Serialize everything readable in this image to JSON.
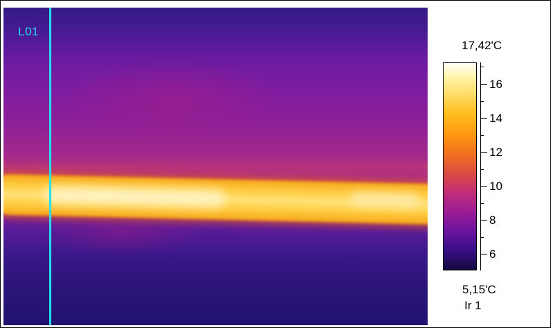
{
  "thermal_view": {
    "line_tool": {
      "label": "L01",
      "color": "#22e0f0"
    },
    "scale": {
      "max_label": "17,42'C",
      "min_label": "5,15'C",
      "max_value": 17.42,
      "min_value": 5.15,
      "ticks": [
        "16",
        "14",
        "12",
        "10",
        "8",
        "6"
      ],
      "palette": "iron"
    },
    "source_label": "Ir 1"
  }
}
